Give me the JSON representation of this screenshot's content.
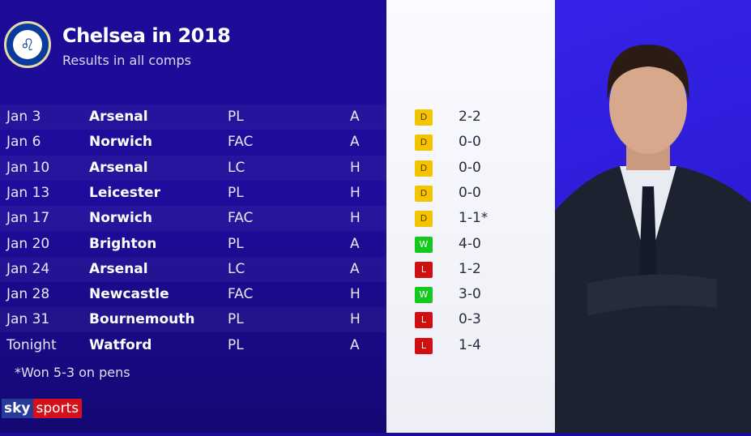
{
  "header": {
    "title": "Chelsea in 2018",
    "subtitle": "Results in all comps",
    "crest": "chelsea-crest"
  },
  "results": [
    {
      "date": "Jan 3",
      "opponent": "Arsenal",
      "comp": "PL",
      "venue": "A",
      "result": "D",
      "score": "2-2"
    },
    {
      "date": "Jan 6",
      "opponent": "Norwich",
      "comp": "FAC",
      "venue": "A",
      "result": "D",
      "score": "0-0"
    },
    {
      "date": "Jan 10",
      "opponent": "Arsenal",
      "comp": "LC",
      "venue": "H",
      "result": "D",
      "score": "0-0"
    },
    {
      "date": "Jan 13",
      "opponent": "Leicester",
      "comp": "PL",
      "venue": "H",
      "result": "D",
      "score": "0-0"
    },
    {
      "date": "Jan 17",
      "opponent": "Norwich",
      "comp": "FAC",
      "venue": "H",
      "result": "D",
      "score": "1-1*"
    },
    {
      "date": "Jan 20",
      "opponent": "Brighton",
      "comp": "PL",
      "venue": "A",
      "result": "W",
      "score": "4-0"
    },
    {
      "date": "Jan 24",
      "opponent": "Arsenal",
      "comp": "LC",
      "venue": "A",
      "result": "L",
      "score": "1-2"
    },
    {
      "date": "Jan 28",
      "opponent": "Newcastle",
      "comp": "FAC",
      "venue": "H",
      "result": "W",
      "score": "3-0"
    },
    {
      "date": "Jan 31",
      "opponent": "Bournemouth",
      "comp": "PL",
      "venue": "H",
      "result": "L",
      "score": "0-3"
    },
    {
      "date": "Tonight",
      "opponent": "Watford",
      "comp": "PL",
      "venue": "A",
      "result": "L",
      "score": "1-4"
    }
  ],
  "colors": {
    "D": "#f5c400",
    "W": "#14c81e",
    "L": "#d01010"
  },
  "footnote": "*Won 5-3 on pens",
  "brand": {
    "sky": "sky",
    "sports": "sports"
  }
}
